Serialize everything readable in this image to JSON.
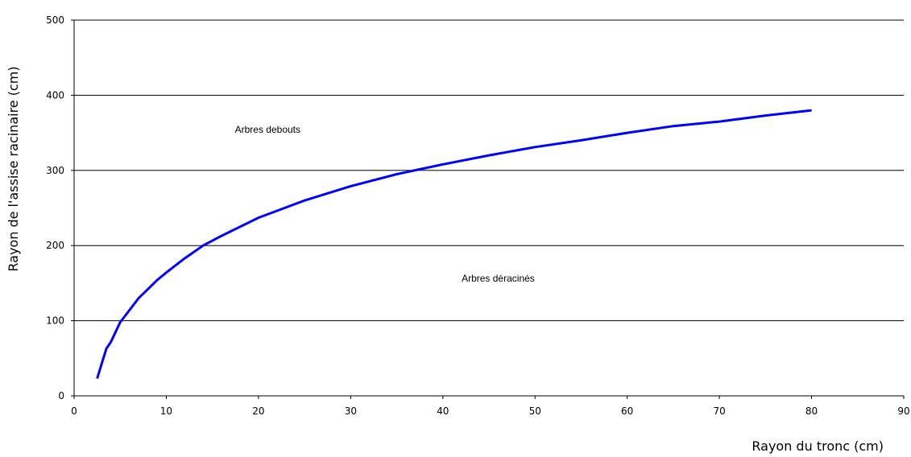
{
  "chart_data": {
    "type": "line",
    "xlabel": "Rayon du tronc (cm)",
    "ylabel": "Rayon de l'assise racinaire (cm)",
    "xlim": [
      0,
      90
    ],
    "ylim": [
      0,
      500
    ],
    "xticks": [
      "0",
      "10",
      "20",
      "30",
      "40",
      "50",
      "60",
      "70",
      "80",
      "90"
    ],
    "yticks": [
      "0",
      "100",
      "200",
      "300",
      "400",
      "500"
    ],
    "grid": "horizontal",
    "legend": "none",
    "colors": {
      "series": "#0000ff",
      "grid": "#000000"
    },
    "annotations": [
      {
        "text": "Arbres debouts",
        "x": 21,
        "y": 350
      },
      {
        "text": "Arbres déracinés",
        "x": 46,
        "y": 152
      }
    ],
    "series": [
      {
        "x": [
          2.5,
          3,
          3.5,
          4,
          5,
          6,
          7,
          8,
          9,
          10,
          12,
          14,
          16,
          18,
          20,
          25,
          30,
          35,
          40,
          45,
          50,
          55,
          60,
          65,
          70,
          75,
          80
        ],
        "y": [
          23,
          43,
          63,
          72,
          98,
          114,
          130,
          142,
          154,
          164,
          183,
          200,
          213,
          225,
          237,
          260,
          279,
          295,
          308,
          320,
          331,
          340,
          350,
          359,
          365,
          373,
          380
        ]
      }
    ]
  }
}
